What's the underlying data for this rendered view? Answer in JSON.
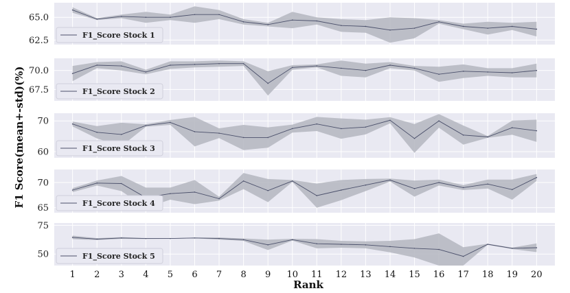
{
  "chart_data": {
    "type": "line",
    "ylabel": "F1 Score(mean+-std)(%)",
    "xlabel": "Rank",
    "x": [
      1,
      2,
      3,
      4,
      5,
      6,
      7,
      8,
      9,
      10,
      11,
      12,
      13,
      14,
      15,
      16,
      17,
      18,
      19,
      20
    ],
    "grid": true,
    "legend_position": "lower-left",
    "colors": {
      "background": "#e9e9f2",
      "grid": "#ffffff",
      "line": "#4a4f6a",
      "band": "#b4b6c0"
    },
    "panels": [
      {
        "name": "F1_Score Stock 1",
        "ylim": [
          62.0,
          66.6
        ],
        "yticks": [
          62.5,
          65.0
        ],
        "ytick_labels": [
          "62.5",
          "65.0"
        ],
        "mean": [
          65.8,
          64.8,
          65.1,
          65.0,
          65.0,
          65.3,
          65.3,
          64.5,
          64.2,
          64.7,
          64.6,
          64.1,
          64.0,
          63.6,
          63.8,
          64.5,
          64.0,
          63.8,
          64.0,
          63.7
        ],
        "std": [
          0.3,
          0.1,
          0.2,
          0.6,
          0.3,
          0.9,
          0.5,
          0.3,
          0.2,
          0.9,
          0.4,
          0.7,
          0.7,
          1.4,
          1.1,
          0.2,
          0.3,
          0.7,
          0.4,
          0.8
        ]
      },
      {
        "name": "F1_Score Stock 2",
        "ylim": [
          66.0,
          71.6
        ],
        "yticks": [
          67.5,
          70.0
        ],
        "ytick_labels": [
          "67.5",
          "70.0"
        ],
        "mean": [
          69.6,
          70.7,
          70.6,
          69.8,
          70.7,
          70.8,
          70.9,
          70.9,
          68.3,
          70.4,
          70.6,
          70.3,
          70.0,
          70.7,
          70.3,
          69.5,
          69.9,
          69.8,
          69.7,
          70.0
        ],
        "std": [
          1.0,
          0.4,
          0.6,
          0.3,
          0.5,
          0.4,
          0.4,
          0.3,
          1.6,
          0.3,
          0.2,
          1.0,
          0.9,
          0.4,
          0.3,
          1.0,
          0.9,
          0.5,
          0.6,
          0.9
        ]
      },
      {
        "name": "F1_Score Stock 3",
        "ylim": [
          58.0,
          72.5
        ],
        "yticks": [
          60,
          70
        ],
        "ytick_labels": [
          "60",
          "70"
        ],
        "mean": [
          69.0,
          66.3,
          65.6,
          68.5,
          69.5,
          66.5,
          66.0,
          64.6,
          64.6,
          67.5,
          69.0,
          67.5,
          68.0,
          70.2,
          64.3,
          70.0,
          65.4,
          64.8,
          67.8,
          66.8
        ],
        "std": [
          0.8,
          2.0,
          3.8,
          0.4,
          0.8,
          4.8,
          1.6,
          4.1,
          3.3,
          1.3,
          2.3,
          3.3,
          2.4,
          1.0,
          4.7,
          2.2,
          3.1,
          0.3,
          2.3,
          3.6
        ]
      },
      {
        "name": "F1_Score Stock 4",
        "ylim": [
          64.0,
          72.6
        ],
        "yticks": [
          65,
          70
        ],
        "ytick_labels": [
          "65",
          "70"
        ],
        "mean": [
          68.5,
          69.9,
          69.8,
          67.0,
          67.8,
          68.1,
          66.8,
          70.3,
          68.4,
          70.3,
          67.4,
          68.5,
          69.5,
          70.5,
          68.8,
          70.0,
          69.0,
          69.7,
          68.6,
          71.0
        ],
        "std": [
          0.4,
          0.5,
          1.5,
          2.0,
          1.2,
          2.4,
          0.4,
          1.6,
          2.3,
          0.2,
          2.4,
          2.0,
          1.2,
          0.3,
          1.6,
          0.6,
          0.5,
          0.9,
          2.0,
          0.7
        ]
      },
      {
        "name": "F1_Score Stock 5",
        "ylim": [
          40.0,
          77.0
        ],
        "yticks": [
          50,
          75
        ],
        "ytick_labels": [
          "50",
          "75"
        ],
        "mean": [
          64.5,
          63.0,
          64.0,
          63.5,
          63.5,
          64.0,
          63.5,
          62.5,
          58.0,
          62.5,
          59.0,
          58.5,
          58.0,
          56.5,
          55.0,
          54.0,
          48.0,
          58.5,
          55.0,
          55.5
        ],
        "std": [
          1.5,
          0.8,
          0.7,
          0.4,
          0.2,
          0.3,
          0.9,
          1.1,
          4.5,
          0.8,
          4.0,
          3.0,
          3.0,
          5.0,
          8.0,
          14.0,
          8.0,
          0.5,
          0.6,
          3.8
        ]
      }
    ]
  }
}
